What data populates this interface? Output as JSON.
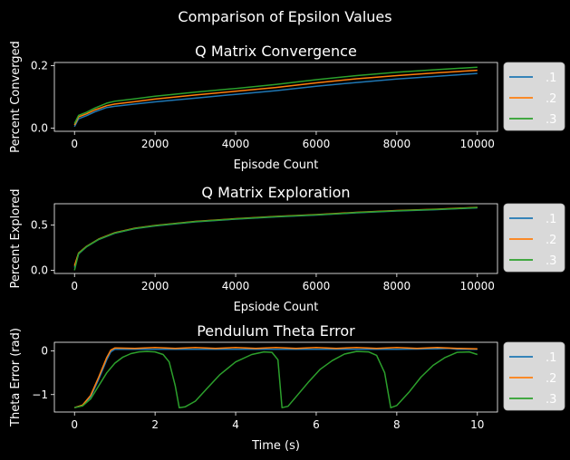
{
  "figure": {
    "suptitle": "Comparison of Epsilon Values",
    "background": "#000000",
    "axes_color": "#ffffff",
    "series_colors": [
      "#1f77b4",
      "#ff7f0e",
      "#2ca02c"
    ],
    "legend_box_color": "#d9d9d9"
  },
  "chart_data": [
    {
      "type": "line",
      "title": "Q Matrix Convergence",
      "xlabel": "Episode Count",
      "ylabel": "Percent Converged",
      "xlim": [
        -500,
        10500
      ],
      "ylim": [
        -0.01,
        0.21
      ],
      "xticks": [
        0,
        2000,
        4000,
        6000,
        8000,
        10000
      ],
      "yticks": [
        0.0,
        0.2
      ],
      "ytick_labels": [
        "0.0",
        "0.2"
      ],
      "legend_placement": "outside-right",
      "grid": false,
      "series": [
        {
          "name": ".1",
          "x": [
            0,
            100,
            300,
            500,
            800,
            1000,
            1500,
            2000,
            3000,
            4000,
            5000,
            6000,
            7000,
            8000,
            9000,
            10000
          ],
          "y": [
            0.005,
            0.03,
            0.04,
            0.052,
            0.066,
            0.07,
            0.077,
            0.084,
            0.096,
            0.108,
            0.12,
            0.134,
            0.146,
            0.157,
            0.166,
            0.175
          ]
        },
        {
          "name": ".2",
          "x": [
            0,
            100,
            300,
            500,
            800,
            1000,
            1500,
            2000,
            3000,
            4000,
            5000,
            6000,
            7000,
            8000,
            9000,
            10000
          ],
          "y": [
            0.01,
            0.036,
            0.046,
            0.058,
            0.072,
            0.077,
            0.085,
            0.093,
            0.106,
            0.118,
            0.13,
            0.145,
            0.158,
            0.168,
            0.177,
            0.185
          ]
        },
        {
          "name": ".3",
          "x": [
            0,
            100,
            300,
            500,
            800,
            1000,
            1500,
            2000,
            3000,
            4000,
            5000,
            6000,
            7000,
            8000,
            9000,
            10000
          ],
          "y": [
            0.015,
            0.041,
            0.051,
            0.064,
            0.08,
            0.086,
            0.094,
            0.102,
            0.115,
            0.127,
            0.14,
            0.155,
            0.168,
            0.179,
            0.187,
            0.195
          ]
        }
      ]
    },
    {
      "type": "line",
      "title": "Q Matrix Exploration",
      "xlabel": "Epsiode Count",
      "ylabel": "Percent Explored",
      "xlim": [
        -500,
        10500
      ],
      "ylim": [
        -0.035,
        0.735
      ],
      "xticks": [
        0,
        2000,
        4000,
        6000,
        8000,
        10000
      ],
      "yticks": [
        0.0,
        0.5
      ],
      "ytick_labels": [
        "0.0",
        "0.5"
      ],
      "legend_placement": "outside-right",
      "grid": false,
      "series": [
        {
          "name": ".1",
          "x": [
            0,
            100,
            300,
            600,
            1000,
            1500,
            2000,
            3000,
            4000,
            5000,
            6000,
            7000,
            8000,
            9000,
            10000
          ],
          "y": [
            0.03,
            0.18,
            0.26,
            0.34,
            0.41,
            0.46,
            0.49,
            0.535,
            0.565,
            0.59,
            0.61,
            0.635,
            0.655,
            0.67,
            0.69
          ]
        },
        {
          "name": ".2",
          "x": [
            0,
            100,
            300,
            600,
            1000,
            1500,
            2000,
            3000,
            4000,
            5000,
            6000,
            7000,
            8000,
            9000,
            10000
          ],
          "y": [
            0.05,
            0.19,
            0.265,
            0.345,
            0.415,
            0.465,
            0.495,
            0.54,
            0.57,
            0.595,
            0.615,
            0.64,
            0.66,
            0.675,
            0.695
          ]
        },
        {
          "name": ".3",
          "x": [
            0,
            100,
            300,
            600,
            1000,
            1500,
            2000,
            3000,
            4000,
            5000,
            6000,
            7000,
            8000,
            9000,
            10000
          ],
          "y": [
            0.0,
            0.185,
            0.262,
            0.342,
            0.412,
            0.462,
            0.492,
            0.537,
            0.567,
            0.592,
            0.612,
            0.637,
            0.657,
            0.672,
            0.692
          ]
        }
      ]
    },
    {
      "type": "line",
      "title": "Pendulum Theta Error",
      "xlabel": "Time (s)",
      "ylabel": "Theta Error (rad)",
      "xlim": [
        -0.5,
        10.5
      ],
      "ylim": [
        -1.4,
        0.2
      ],
      "xticks": [
        0,
        2,
        4,
        6,
        8,
        10
      ],
      "yticks": [
        0,
        -1
      ],
      "ytick_labels": [
        "0",
        "−1"
      ],
      "legend_placement": "outside-right",
      "grid": false,
      "series": [
        {
          "name": ".1",
          "x": [
            0,
            0.2,
            0.4,
            0.6,
            0.8,
            0.9,
            1.0,
            1.5,
            2.0,
            3.0,
            4.0,
            5.0,
            6.0,
            7.0,
            8.0,
            9.0,
            9.3,
            9.5,
            10.0
          ],
          "y": [
            -1.3,
            -1.25,
            -1.05,
            -0.65,
            -0.2,
            -0.02,
            0.04,
            0.04,
            0.04,
            0.04,
            0.04,
            0.04,
            0.04,
            0.04,
            0.04,
            0.05,
            0.06,
            0.04,
            0.04
          ]
        },
        {
          "name": ".2",
          "x": [
            0,
            0.2,
            0.4,
            0.6,
            0.8,
            0.9,
            1.0,
            1.5,
            2.0,
            2.5,
            3.0,
            3.5,
            4.0,
            4.5,
            5.0,
            5.5,
            6.0,
            6.5,
            7.0,
            7.5,
            8.0,
            8.5,
            9.0,
            9.5,
            10.0
          ],
          "y": [
            -1.3,
            -1.24,
            -1.02,
            -0.6,
            -0.15,
            0.02,
            0.07,
            0.06,
            0.08,
            0.06,
            0.08,
            0.06,
            0.08,
            0.06,
            0.08,
            0.06,
            0.08,
            0.06,
            0.08,
            0.06,
            0.08,
            0.06,
            0.08,
            0.06,
            0.05
          ]
        },
        {
          "name": ".3",
          "x": [
            0,
            0.2,
            0.4,
            0.6,
            0.8,
            1.0,
            1.2,
            1.4,
            1.6,
            1.8,
            2.0,
            2.2,
            2.35,
            2.5,
            2.6,
            2.75,
            3.0,
            3.3,
            3.6,
            4.0,
            4.4,
            4.7,
            4.9,
            5.05,
            5.15,
            5.3,
            5.5,
            5.8,
            6.1,
            6.4,
            6.7,
            7.0,
            7.3,
            7.5,
            7.7,
            7.85,
            8.0,
            8.3,
            8.6,
            8.9,
            9.2,
            9.5,
            9.8,
            10.0
          ],
          "y": [
            -1.3,
            -1.26,
            -1.1,
            -0.8,
            -0.5,
            -0.28,
            -0.14,
            -0.06,
            -0.02,
            -0.01,
            -0.02,
            -0.08,
            -0.25,
            -0.8,
            -1.3,
            -1.28,
            -1.15,
            -0.85,
            -0.55,
            -0.25,
            -0.08,
            -0.02,
            -0.03,
            -0.2,
            -1.3,
            -1.27,
            -1.05,
            -0.72,
            -0.42,
            -0.22,
            -0.07,
            -0.01,
            -0.02,
            -0.1,
            -0.5,
            -1.3,
            -1.25,
            -0.95,
            -0.6,
            -0.33,
            -0.15,
            -0.03,
            -0.02,
            -0.08
          ]
        }
      ]
    }
  ]
}
